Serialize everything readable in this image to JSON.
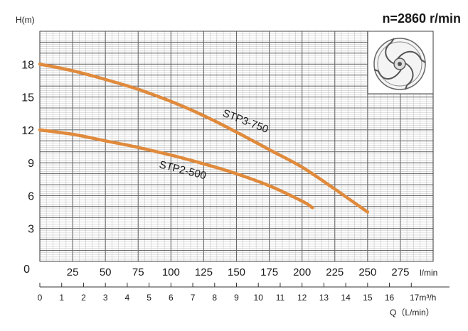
{
  "chart_data": {
    "type": "line",
    "title": "n=2860 r/min",
    "ylabel": "H(m)",
    "xlabel": "Q（L/min）",
    "x_unit_lmin": "l/min",
    "x_unit_m3h": "17m³/h",
    "ylim": [
      0,
      21
    ],
    "xlim": [
      0,
      300
    ],
    "y_ticks": [
      {
        "value": 0,
        "label": "0"
      },
      {
        "value": 3,
        "label": "3"
      },
      {
        "value": 6,
        "label": "6"
      },
      {
        "value": 9,
        "label": "9"
      },
      {
        "value": 12,
        "label": "12"
      },
      {
        "value": 15,
        "label": "15"
      },
      {
        "value": 18,
        "label": "18"
      }
    ],
    "x_ticks_lmin": [
      {
        "value": 25,
        "label": "25"
      },
      {
        "value": 50,
        "label": "50"
      },
      {
        "value": 75,
        "label": "75"
      },
      {
        "value": 100,
        "label": "100"
      },
      {
        "value": 125,
        "label": "125"
      },
      {
        "value": 150,
        "label": "150"
      },
      {
        "value": 175,
        "label": "175"
      },
      {
        "value": 200,
        "label": "200"
      },
      {
        "value": 225,
        "label": "225"
      },
      {
        "value": 250,
        "label": "250"
      },
      {
        "value": 275,
        "label": "275"
      }
    ],
    "x_ticks_m3h": [
      {
        "value": 0,
        "label": "0"
      },
      {
        "value": 1,
        "label": "1"
      },
      {
        "value": 2,
        "label": "2"
      },
      {
        "value": 3,
        "label": "3"
      },
      {
        "value": 4,
        "label": "4"
      },
      {
        "value": 5,
        "label": "5"
      },
      {
        "value": 6,
        "label": "6"
      },
      {
        "value": 7,
        "label": "7"
      },
      {
        "value": 8,
        "label": "8"
      },
      {
        "value": 9,
        "label": "9"
      },
      {
        "value": 10,
        "label": "10"
      },
      {
        "value": 11,
        "label": "11"
      },
      {
        "value": 12,
        "label": "12"
      },
      {
        "value": 13,
        "label": "13"
      },
      {
        "value": 14,
        "label": "14"
      },
      {
        "value": 15,
        "label": "15"
      },
      {
        "value": 16,
        "label": "16"
      }
    ],
    "series": [
      {
        "name": "STP3-750",
        "color": "#e08a3c",
        "x": [
          0,
          25,
          50,
          75,
          100,
          125,
          150,
          175,
          200,
          225,
          250
        ],
        "y": [
          18.0,
          17.4,
          16.6,
          15.7,
          14.6,
          13.3,
          11.8,
          10.2,
          8.6,
          6.6,
          4.5
        ]
      },
      {
        "name": "STP2-500",
        "color": "#e08a3c",
        "x": [
          0,
          25,
          50,
          75,
          100,
          125,
          150,
          175,
          200,
          208
        ],
        "y": [
          12.0,
          11.6,
          11.0,
          10.4,
          9.7,
          8.9,
          8.0,
          6.9,
          5.5,
          4.9
        ]
      }
    ],
    "grid": true,
    "inset": {
      "icon": "impeller-icon"
    }
  }
}
